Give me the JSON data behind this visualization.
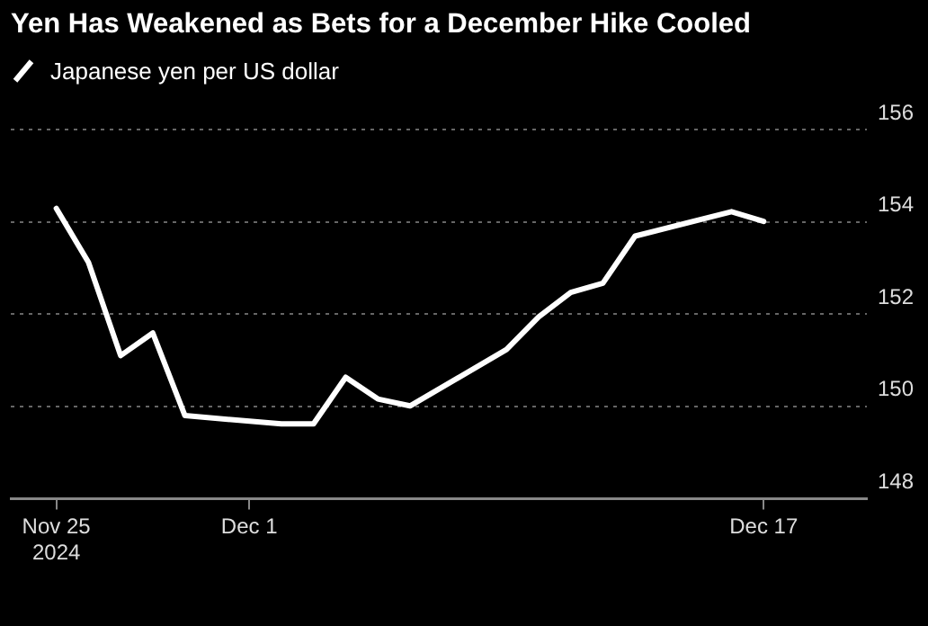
{
  "chart_data": {
    "type": "line",
    "title": "Yen Has Weakened as Bets for a December Hike Cooled",
    "x": [
      "2024-11-25",
      "2024-11-26",
      "2024-11-27",
      "2024-11-28",
      "2024-11-29",
      "2024-12-02",
      "2024-12-03",
      "2024-12-04",
      "2024-12-05",
      "2024-12-06",
      "2024-12-09",
      "2024-12-10",
      "2024-12-11",
      "2024-12-12",
      "2024-12-13",
      "2024-12-16",
      "2024-12-17"
    ],
    "series": [
      {
        "name": "Japanese yen per US dollar",
        "color": "#ffffff",
        "values": [
          154.29,
          153.12,
          151.1,
          151.59,
          149.8,
          149.62,
          149.62,
          150.63,
          150.16,
          150.01,
          151.23,
          151.94,
          152.47,
          152.67,
          153.69,
          154.22,
          154.01
        ]
      }
    ],
    "xlim": [
      "2024-11-23T14:00",
      "2024-12-20T05:00"
    ],
    "xticks": [
      {
        "value": "2024-11-25",
        "label": "Nov 25\n2024"
      },
      {
        "value": "2024-12-01",
        "label": "Dec 1"
      },
      {
        "value": "2024-12-17",
        "label": "Dec 17"
      }
    ],
    "ylim": [
      148,
      156
    ],
    "yticks": [
      148,
      150,
      152,
      154,
      156
    ],
    "grid": "y",
    "legend": "top left",
    "marker": "none",
    "line_style": "solid"
  }
}
